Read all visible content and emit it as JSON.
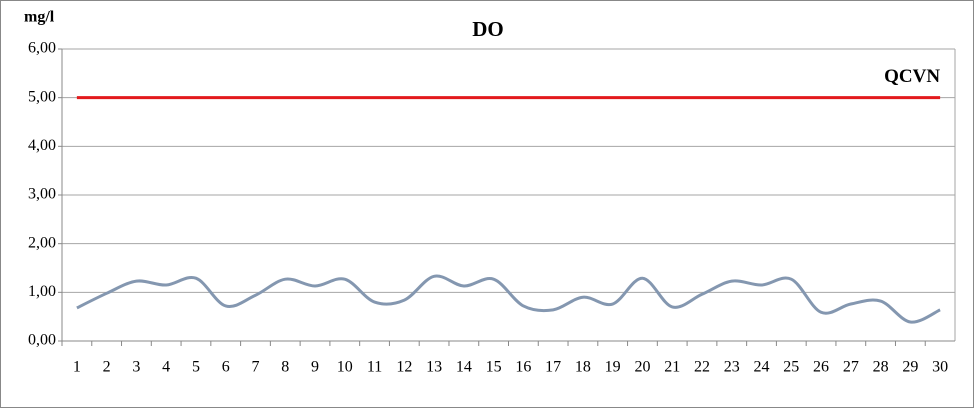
{
  "chart_data": {
    "type": "line",
    "title": "DO",
    "y_label": "mg/l",
    "categories": [
      "1",
      "2",
      "3",
      "4",
      "5",
      "6",
      "7",
      "8",
      "9",
      "10",
      "11",
      "12",
      "13",
      "14",
      "15",
      "16",
      "17",
      "18",
      "19",
      "20",
      "21",
      "22",
      "23",
      "24",
      "25",
      "26",
      "27",
      "28",
      "29",
      "30"
    ],
    "series": [
      {
        "color": "#8497b0",
        "smooth": true,
        "values": [
          0.68,
          0.98,
          1.23,
          1.15,
          1.29,
          0.72,
          0.94,
          1.27,
          1.13,
          1.27,
          0.8,
          0.84,
          1.33,
          1.13,
          1.27,
          0.72,
          0.64,
          0.9,
          0.76,
          1.29,
          0.7,
          0.96,
          1.23,
          1.15,
          1.27,
          0.59,
          0.76,
          0.82,
          0.39,
          0.64
        ]
      },
      {
        "name": "QCVN",
        "color": "#e31a1c",
        "smooth": false,
        "values": [
          5,
          5,
          5,
          5,
          5,
          5,
          5,
          5,
          5,
          5,
          5,
          5,
          5,
          5,
          5,
          5,
          5,
          5,
          5,
          5,
          5,
          5,
          5,
          5,
          5,
          5,
          5,
          5,
          5,
          5
        ]
      }
    ],
    "ylim": [
      0,
      6
    ],
    "yticks": [
      {
        "value": 0,
        "label": "0,00"
      },
      {
        "value": 1,
        "label": "1,00"
      },
      {
        "value": 2,
        "label": "2,00"
      },
      {
        "value": 3,
        "label": "3,00"
      },
      {
        "value": 4,
        "label": "4,00"
      },
      {
        "value": 5,
        "label": "5,00"
      },
      {
        "value": 6,
        "label": "6,00"
      }
    ],
    "grid": true
  }
}
